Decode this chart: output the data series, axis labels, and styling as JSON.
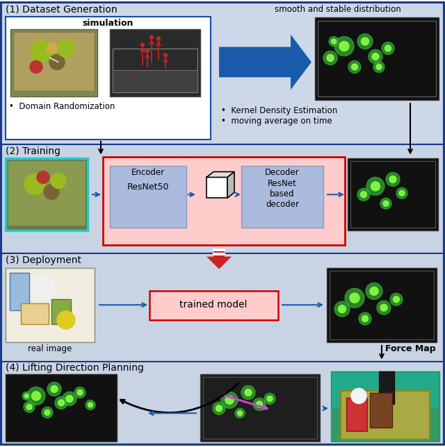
{
  "bg_color": "#c5d5e5",
  "outer_border_color": "#1a3a8a",
  "section1_label": "(1) Dataset Generation",
  "section1_box_border": "#1a4aaa",
  "sim_label": "simulation",
  "domain_rand_label": "Domain Randomization",
  "smooth_label": "smooth and stable distribution",
  "kde_label": "Kernel Density Estimation",
  "moving_avg_label": "moving average on time",
  "section2_label": "(2) Training",
  "encoder_label": "Encoder",
  "decoder_label": "Decoder",
  "resnet50_label": "ResNet50",
  "resnet_decoder_label": "ResNet\nbased\ndecoder",
  "training_box_color": "#ffcccc",
  "training_box_border": "#cc0000",
  "encoder_box_color": "#aabbdd",
  "decoder_box_color": "#aabbdd",
  "section3_label": "(3) Deployment",
  "real_image_label": "real image",
  "trained_model_label": "trained model",
  "trained_model_box_color": "#ffcccc",
  "trained_model_box_border": "#cc0000",
  "force_map_label": "Force Map",
  "section4_label": "(4) Lifting Direction Planning",
  "arrow_blue": "#1a5aaa",
  "arrow_red": "#cc2222"
}
